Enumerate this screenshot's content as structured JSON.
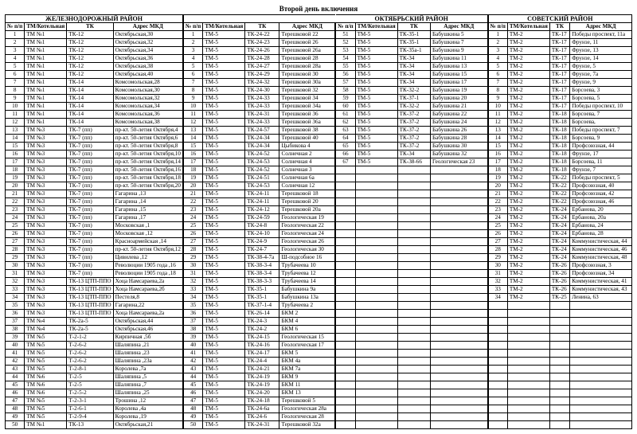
{
  "title": "Второй день включения",
  "headers": {
    "num": "№ п/п",
    "tm": "ТМ/Котельная",
    "tk": "ТК",
    "adr": "Адрес МКД"
  },
  "sections": [
    {
      "name": "ЖЕЛЕЗНОДОРОЖНЫЙ РАЙОН",
      "rows": [
        [
          "1",
          "ТМ №1",
          "ТК-12",
          "Октябрьская,30"
        ],
        [
          "2",
          "ТМ №1",
          "ТК-12",
          "Октябрьская,32"
        ],
        [
          "3",
          "ТМ №1",
          "ТК-12",
          "Октябрьская,34"
        ],
        [
          "4",
          "ТМ №1",
          "ТК-12",
          "Октябрьская,36"
        ],
        [
          "5",
          "ТМ №1",
          "ТК-12",
          "Октябрьская,38"
        ],
        [
          "6",
          "ТМ №1",
          "ТК-12",
          "Октябрьская,40"
        ],
        [
          "7",
          "ТМ №1",
          "ТК-14",
          "Комсомольская,28"
        ],
        [
          "8",
          "ТМ №1",
          "ТК-14",
          "Комсомольская,30"
        ],
        [
          "9",
          "ТМ №1",
          "ТК-14",
          "Комсомольская,32"
        ],
        [
          "10",
          "ТМ №1",
          "ТК-14",
          "Комсомольская,34"
        ],
        [
          "11",
          "ТМ №1",
          "ТК-14",
          "Комсомольская,36"
        ],
        [
          "12",
          "ТМ №1",
          "ТК-14",
          "Комсомольская,38"
        ],
        [
          "13",
          "ТМ №3",
          "ТК-7 (пп)",
          "пр-кт. 50-летия Октября,4"
        ],
        [
          "14",
          "ТМ №3",
          "ТК-7 (пп)",
          "пр-кт. 50-летия Октября,6"
        ],
        [
          "15",
          "ТМ №3",
          "ТК-7 (пп)",
          "пр-кт. 50-летия Октября,8"
        ],
        [
          "16",
          "ТМ №3",
          "ТК-7 (пп)",
          "пр-кт. 50-летия Октября,10"
        ],
        [
          "17",
          "ТМ №3",
          "ТК-7 (пп)",
          "пр-кт. 50-летия Октября,14"
        ],
        [
          "18",
          "ТМ №3",
          "ТК-7 (пп)",
          "пр-кт. 50-летия Октября,16"
        ],
        [
          "19",
          "ТМ №3",
          "ТК-7 (пп)",
          "пр-кт. 50-летия Октября,18"
        ],
        [
          "20",
          "ТМ №3",
          "ТК-7 (пп)",
          "пр-кт. 50-летия Октября,20"
        ],
        [
          "21",
          "ТМ №3",
          "ТК-7 (пп)",
          "Гагарина ,13"
        ],
        [
          "22",
          "ТМ №3",
          "ТК-7 (пп)",
          "Гагарина ,14"
        ],
        [
          "23",
          "ТМ №3",
          "ТК-7 (пп)",
          "Гагарина ,15"
        ],
        [
          "24",
          "ТМ №3",
          "ТК-7 (пп)",
          "Гагарина ,17"
        ],
        [
          "25",
          "ТМ №3",
          "ТК-7 (пп)",
          "Московская ,1"
        ],
        [
          "26",
          "ТМ №3",
          "ТК-7 (пп)",
          "Московская ,12"
        ],
        [
          "27",
          "ТМ №3",
          "ТК-7 (пп)",
          "Красноармейская ,14"
        ],
        [
          "28",
          "ТМ №3",
          "ТК-7 (пп)",
          "пр-кт. 50-летия Октября,12"
        ],
        [
          "29",
          "ТМ №3",
          "ТК-7 (пп)",
          "Цивилева ,12"
        ],
        [
          "30",
          "ТМ №3",
          "ТК-7 (пп)",
          "Революции 1905 года ,16"
        ],
        [
          "31",
          "ТМ №3",
          "ТК-7 (пп)",
          "Революции 1905 года ,18"
        ],
        [
          "32",
          "ТМ №3",
          "ТК-13 ЦТП-ППО",
          "Хоца Намсараева,2а"
        ],
        [
          "33",
          "ТМ №3",
          "ТК-13 ЦТП-ППО",
          "Хоца Намсараева,2б"
        ],
        [
          "34",
          "ТМ №3",
          "ТК-13 ЦТП-ППО",
          "Пестеля,8"
        ],
        [
          "35",
          "ТМ №3",
          "ТК-13 ЦТП-ППО",
          "Гагарина,22"
        ],
        [
          "36",
          "ТМ №3",
          "ТК-13 ЦТП-ППО",
          "Хоца Намсараева,2а"
        ],
        [
          "37",
          "ТМ №4",
          "ТК-2а-5",
          "Октябрьская,44"
        ],
        [
          "38",
          "ТМ №4",
          "ТК-2а-5",
          "Октябрьская,46"
        ],
        [
          "39",
          "ТМ №5",
          "Т-2-1-2",
          "Кирпичная ,5б"
        ],
        [
          "40",
          "ТМ №5",
          "Т-2-6-2",
          "Шаляпина ,21"
        ],
        [
          "41",
          "ТМ №5",
          "Т-2-6-2",
          "Шаляпина ,23"
        ],
        [
          "42",
          "ТМ №5",
          "Т-2-6-2",
          "Шаляпина ,23а"
        ],
        [
          "43",
          "ТМ №5",
          "Т-2-8-1",
          "Королева ,7а"
        ],
        [
          "44",
          "ТМ №6",
          "Т-2-5",
          "Шаляпина ,5"
        ],
        [
          "45",
          "ТМ №6",
          "Т-2-5",
          "Шаляпина ,7"
        ],
        [
          "46",
          "ТМ №6",
          "Т-2-5-2",
          "Шаляпина ,25"
        ],
        [
          "47",
          "ТМ №5",
          "Т-2-3-1",
          "Трошина ,12"
        ],
        [
          "48",
          "ТМ №5",
          "Т-2-6-1",
          "Королева ,4а"
        ],
        [
          "49",
          "ТМ №5",
          "Т-2-9-4",
          "Королева ,19"
        ],
        [
          "50",
          "ТМ №1",
          "ТК-13",
          "Октябрьская,21"
        ]
      ]
    },
    {
      "name": "ОКТЯБРЬСКИЙ РАЙОН",
      "rows": [
        [
          "1",
          "ТМ-5",
          "ТК-24-22",
          "Терешковой 22"
        ],
        [
          "2",
          "ТМ-5",
          "ТК-24-23",
          "Терешковой 26"
        ],
        [
          "3",
          "ТМ-5",
          "ТК-24-26",
          "Терешковой 26а"
        ],
        [
          "4",
          "ТМ-5",
          "ТК-24-28",
          "Терешковой 28"
        ],
        [
          "5",
          "ТМ-5",
          "ТК-24-27",
          "Терешковой 28а"
        ],
        [
          "6",
          "ТМ-5",
          "ТК-24-29",
          "Терешковой 30"
        ],
        [
          "7",
          "ТМ-5",
          "ТК-24-32",
          "Терешковой 30а"
        ],
        [
          "8",
          "ТМ-5",
          "ТК-24-30",
          "Терешковой 32"
        ],
        [
          "9",
          "ТМ-5",
          "ТК-24-33",
          "Терешковой 34"
        ],
        [
          "10",
          "ТМ-5",
          "ТК-24-33",
          "Терешковой 34а"
        ],
        [
          "11",
          "ТМ-5",
          "ТК-24-31",
          "Терешковой 36"
        ],
        [
          "12",
          "ТМ-5",
          "ТК-24-33",
          "Терешковой 36а"
        ],
        [
          "13",
          "ТМ-5",
          "ТК-24-57",
          "Терешковой 38"
        ],
        [
          "14",
          "ТМ-5",
          "ТК-24-34",
          "Терешковой 40"
        ],
        [
          "15",
          "ТМ-5",
          "ТК-24-34",
          "Цыбикова 4"
        ],
        [
          "16",
          "ТМ-5",
          "ТК-24-52",
          "Солнечная 2"
        ],
        [
          "17",
          "ТМ-5",
          "ТК-24-53",
          "Солнечная 4"
        ],
        [
          "18",
          "ТМ-5",
          "ТК-24-52",
          "Солнечная 3"
        ],
        [
          "19",
          "ТМ-5",
          "ТК-24-51",
          "Солнечная 6а"
        ],
        [
          "20",
          "ТМ-5",
          "ТК-24-53",
          "Солнечная 12"
        ],
        [
          "21",
          "ТМ-5",
          "ТК-24-11",
          "Терешковой 18"
        ],
        [
          "22",
          "ТМ-5",
          "ТК-24-11",
          "Терешковой 20"
        ],
        [
          "23",
          "ТМ-5",
          "ТК-24-12",
          "Терешковой 20а"
        ],
        [
          "24",
          "ТМ-5",
          "ТК-24-59",
          "Геологическая 19"
        ],
        [
          "25",
          "ТМ-5",
          "ТК-24-8",
          "Геологическая 22"
        ],
        [
          "26",
          "ТМ-5",
          "ТК-24-10",
          "Геологическая 24"
        ],
        [
          "27",
          "ТМ-5",
          "ТК-24-9",
          "Геологическая 26"
        ],
        [
          "28",
          "ТМ-5",
          "ТК-24-7",
          "Геологическая 30"
        ],
        [
          "29",
          "ТМ-5",
          "ТК-38-4-7а",
          "Ш-подсобное 16"
        ],
        [
          "30",
          "ТМ-5",
          "ТК-38-3-4",
          "Трубачеева 10"
        ],
        [
          "31",
          "ТМ-5",
          "ТК-38-3-4",
          "Трубачеева 12"
        ],
        [
          "32",
          "ТМ-5",
          "ТК-38-3-3",
          "Трубачеева 14"
        ],
        [
          "33",
          "ТМ-5",
          "ТК-35-1",
          "Бабушкина 9а"
        ],
        [
          "34",
          "ТМ-5",
          "ТК-35-1",
          "Бабушкина 13а"
        ],
        [
          "35",
          "ТМ-5",
          "ТК-37-1-4",
          "Трубачеева 2"
        ],
        [
          "36",
          "ТМ-5",
          "ТК-26-14",
          "БКМ 2"
        ],
        [
          "37",
          "ТМ-5",
          "ТК-24-3",
          "БКМ 4"
        ],
        [
          "38",
          "ТМ-5",
          "ТК-24-2",
          "БКМ 6"
        ],
        [
          "39",
          "ТМ-5",
          "ТК-24-15",
          "Геологическая 15"
        ],
        [
          "40",
          "ТМ-5",
          "ТК-24-16",
          "Геологическая 17"
        ],
        [
          "41",
          "ТМ-5",
          "ТК-24-17",
          "БКМ 5"
        ],
        [
          "42",
          "ТМ-5",
          "ТК-24-4",
          "БКМ 4а"
        ],
        [
          "43",
          "ТМ-5",
          "ТК-24-21",
          "БКМ 7а"
        ],
        [
          "44",
          "ТМ-5",
          "ТК-24-19",
          "БКМ 9"
        ],
        [
          "45",
          "ТМ-5",
          "ТК-24-19",
          "БКМ 11"
        ],
        [
          "46",
          "ТМ-5",
          "ТК-24-20",
          "БКМ 13"
        ],
        [
          "47",
          "ТМ-5",
          "ТК-24-18",
          "Терешковой 5"
        ],
        [
          "48",
          "ТМ-5",
          "ТК-24-6а",
          "Геологическая 28а"
        ],
        [
          "49",
          "ТМ-5",
          "ТК-24-6",
          "Геологическая 28"
        ],
        [
          "50",
          "ТМ-5",
          "ТК-24-31",
          "Терешковой 32а"
        ]
      ],
      "rows2": [
        [
          "51",
          "ТМ-5",
          "ТК-35-1",
          "Бабушкина 5"
        ],
        [
          "52",
          "ТМ-5",
          "ТК-35-1",
          "Бабушкина 7"
        ],
        [
          "53",
          "ТМ-5",
          "ТК-35а-1",
          "Бабушкина 9"
        ],
        [
          "54",
          "ТМ-5",
          "ТК-34",
          "Бабушкина 11"
        ],
        [
          "55",
          "ТМ-5",
          "ТК-34",
          "Бабушкина 13"
        ],
        [
          "56",
          "ТМ-5",
          "ТК-34",
          "Бабушкина 15"
        ],
        [
          "57",
          "ТМ-5",
          "ТК-34",
          "Бабушкина 17"
        ],
        [
          "58",
          "ТМ-5",
          "ТК-32-2",
          "Бабушкина 19"
        ],
        [
          "59",
          "ТМ-5",
          "ТК-37-1",
          "Бабушкина 20"
        ],
        [
          "60",
          "ТМ-5",
          "ТК-32-2",
          "Бабушкина 21"
        ],
        [
          "61",
          "ТМ-5",
          "ТК-37-2",
          "Бабушкина 22"
        ],
        [
          "62",
          "ТМ-5",
          "ТК-37-2",
          "Бабушкина 24"
        ],
        [
          "63",
          "ТМ-5",
          "ТК-37-2",
          "Бабушкина 26"
        ],
        [
          "64",
          "ТМ-5",
          "ТК-37-2",
          "Бабушкина 28"
        ],
        [
          "65",
          "ТМ-5",
          "ТК-37-2",
          "Бабушкина 30"
        ],
        [
          "66",
          "ТМ-5",
          "ТК-34",
          "Бабушкина 32"
        ],
        [
          "67",
          "ТМ-5",
          "ТК-38-66",
          "Геологическая 23"
        ]
      ]
    },
    {
      "name": "СОВЕТСКИЙ РАЙОН",
      "rows": [
        [
          "1",
          "ТМ-2",
          "ТК-17",
          "Победы проспект, 11а"
        ],
        [
          "2",
          "ТМ-2",
          "ТК-17",
          "Фрунзе, 11"
        ],
        [
          "3",
          "ТМ-2",
          "ТК-17",
          "Фрунзе, 13"
        ],
        [
          "4",
          "ТМ-2",
          "ТК-17",
          "Фрунзе, 14"
        ],
        [
          "5",
          "ТМ-2",
          "ТК-17",
          "Фрунзе, 5"
        ],
        [
          "6",
          "ТМ-2",
          "ТК-17",
          "Фрунзе, 7а"
        ],
        [
          "7",
          "ТМ-2",
          "ТК-17",
          "Фрунзе, 9"
        ],
        [
          "8",
          "ТМ-2",
          "ТК-17",
          "Борсоева, 3"
        ],
        [
          "9",
          "ТМ-2",
          "ТК-17",
          "Борсоева, 5"
        ],
        [
          "10",
          "ТМ-2",
          "ТК-17",
          "Победы проспект, 10"
        ],
        [
          "11",
          "ТМ-2",
          "ТК-18",
          "Борсоева, 7"
        ],
        [
          "12",
          "ТМ-2",
          "ТК-18",
          "Борсоева,"
        ],
        [
          "13",
          "ТМ-2",
          "ТК-18",
          "Победы проспект, 7"
        ],
        [
          "14",
          "ТМ-2",
          "ТК-18",
          "Борсоева, 9"
        ],
        [
          "15",
          "ТМ-2",
          "ТК-18",
          "Профсоюзная, 44"
        ],
        [
          "16",
          "ТМ-2",
          "ТК-18",
          "Фрунзе, 17"
        ],
        [
          "17",
          "ТМ-2",
          "ТК-18",
          "Борсоева, 11"
        ],
        [
          "18",
          "ТМ-2",
          "ТК-18",
          "Фрунзе, 7"
        ],
        [
          "19",
          "ТМ-2",
          "ТК-22",
          "Победы проспект, 5"
        ],
        [
          "20",
          "ТМ-2",
          "ТК-22",
          "Профсоюзная, 40"
        ],
        [
          "21",
          "ТМ-2",
          "ТК-22",
          "Профсоюзная, 42"
        ],
        [
          "22",
          "ТМ-2",
          "ТК-22",
          "Профсоюзная, 46"
        ],
        [
          "23",
          "ТМ-2",
          "ТК-24",
          "Ербанова, 20"
        ],
        [
          "24",
          "ТМ-2",
          "ТК-24",
          "Ербанова, 20а"
        ],
        [
          "25",
          "ТМ-2",
          "ТК-24",
          "Ербанова, 24"
        ],
        [
          "26",
          "ТМ-2",
          "ТК-24",
          "Ербанова, 28"
        ],
        [
          "27",
          "ТМ-2",
          "ТК-24",
          "Коммунистическая, 44"
        ],
        [
          "28",
          "ТМ-2",
          "ТК-24",
          "Коммунистическая, 46"
        ],
        [
          "29",
          "ТМ-2",
          "ТК-24",
          "Коммунистическая, 48"
        ],
        [
          "30",
          "ТМ-2",
          "ТК-26",
          "Профсоюзная, 3"
        ],
        [
          "31",
          "ТМ-2",
          "ТК-26",
          "Профсоюзная, 34"
        ],
        [
          "32",
          "ТМ-2",
          "ТК-26",
          "Коммунистическая, 41"
        ],
        [
          "33",
          "ТМ-2",
          "ТК-26",
          "Коммунистическая, 43"
        ],
        [
          "34",
          "ТМ-2",
          "ТК-25",
          "Ленина, 63"
        ]
      ]
    }
  ]
}
